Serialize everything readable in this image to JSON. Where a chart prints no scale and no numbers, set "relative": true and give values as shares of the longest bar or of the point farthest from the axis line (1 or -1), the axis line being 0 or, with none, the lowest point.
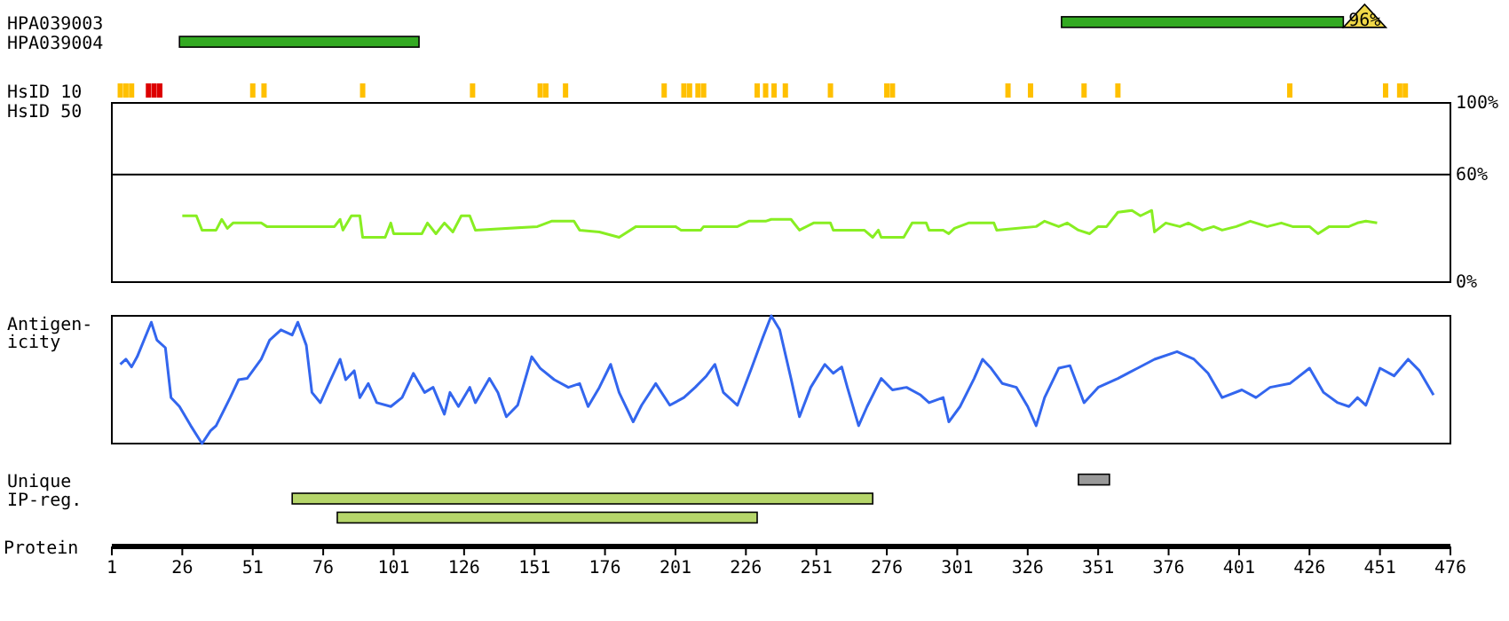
{
  "chart_data": [
    {
      "type": "bar",
      "orientation": "horizontal",
      "categories": [
        "HPA039003",
        "HPA039004"
      ],
      "base": [
        338,
        25
      ],
      "values": [
        100,
        85
      ],
      "color": "#33aa22",
      "xlim": [
        1,
        476
      ],
      "tick_labels": "y",
      "annotations": [
        {
          "text": "96%",
          "x": 438,
          "y": "HPA039003"
        }
      ]
    },
    {
      "type": "bar",
      "relative": true,
      "ylabel": "HsID 10",
      "xlim": [
        1,
        476
      ],
      "series": [
        {
          "color": "#ffc000",
          "x": [
            4,
            6,
            8,
            51,
            55,
            90,
            129,
            153,
            155,
            162,
            197,
            204,
            206,
            209,
            211,
            230,
            233,
            236,
            240,
            256,
            276,
            278,
            319,
            327,
            346,
            358,
            419,
            453,
            458,
            460
          ],
          "values": [
            1,
            1,
            1,
            1,
            1,
            1,
            1,
            1,
            1,
            1,
            1,
            1,
            1,
            1,
            1,
            1,
            1,
            1,
            1,
            1,
            1,
            1,
            1,
            1,
            1,
            1,
            1,
            1,
            1,
            1
          ]
        },
        {
          "color": "#dd0000",
          "x": [
            14,
            16,
            18
          ],
          "values": [
            1,
            1,
            1
          ]
        }
      ]
    },
    {
      "type": "line",
      "ylabel": "HsID 50",
      "xlim": [
        1,
        476
      ],
      "ylim": [
        0,
        100
      ],
      "yticks": [
        {
          "value": 0,
          "label": "0%"
        },
        {
          "value": 60,
          "label": "60%"
        },
        {
          "value": 100,
          "label": "100%"
        }
      ],
      "tick_labels": "y",
      "ref_lines": [
        {
          "axis": "y",
          "value": 60,
          "color": "#000000"
        }
      ],
      "series": [
        {
          "color": "#88ee22",
          "x": [
            26,
            31,
            33,
            38,
            40,
            42,
            44,
            54,
            56,
            80,
            82,
            83,
            86,
            89,
            90,
            98,
            100,
            101,
            111,
            113,
            116,
            119,
            122,
            125,
            128,
            130,
            152,
            157,
            165,
            167,
            174,
            181,
            187,
            201,
            203,
            210,
            211,
            223,
            227,
            233,
            235,
            242,
            245,
            250,
            256,
            257,
            268,
            271,
            273,
            274,
            282,
            285,
            290,
            291,
            296,
            298,
            300,
            305,
            314,
            315,
            329,
            332,
            337,
            340,
            344,
            348,
            351,
            354,
            358,
            363,
            366,
            370,
            371,
            375,
            380,
            383,
            388,
            392,
            395,
            400,
            405,
            411,
            416,
            420,
            426,
            429,
            433,
            440,
            443,
            446,
            450
          ],
          "values": [
            37,
            37,
            29,
            29,
            35,
            30,
            33,
            33,
            31,
            31,
            35,
            29,
            37,
            37,
            25,
            25,
            33,
            27,
            27,
            33,
            27,
            33,
            28,
            37,
            37,
            29,
            31,
            34,
            34,
            29,
            28,
            25,
            31,
            31,
            29,
            29,
            31,
            31,
            34,
            34,
            35,
            35,
            29,
            33,
            33,
            29,
            29,
            25,
            29,
            25,
            25,
            33,
            33,
            29,
            29,
            27,
            30,
            33,
            33,
            29,
            31,
            34,
            31,
            33,
            29,
            27,
            31,
            31,
            39,
            40,
            37,
            40,
            28,
            33,
            31,
            33,
            29,
            31,
            29,
            31,
            34,
            31,
            33,
            31,
            31,
            27,
            31,
            31,
            33,
            34,
            33
          ]
        }
      ]
    },
    {
      "type": "line",
      "relative": true,
      "ylabel": "Antigen-\nicity",
      "xlim": [
        1,
        476
      ],
      "series": [
        {
          "color": "#3366ee",
          "x": [
            4,
            6,
            8,
            10,
            15,
            17,
            20,
            22,
            25,
            29,
            33,
            36,
            38,
            43,
            46,
            49,
            54,
            57,
            61,
            65,
            67,
            70,
            72,
            75,
            78,
            82,
            84,
            87,
            89,
            92,
            95,
            100,
            104,
            108,
            112,
            115,
            119,
            121,
            124,
            128,
            130,
            135,
            138,
            141,
            145,
            150,
            153,
            158,
            163,
            167,
            170,
            174,
            178,
            181,
            186,
            189,
            194,
            199,
            204,
            208,
            212,
            215,
            218,
            223,
            228,
            232,
            235,
            238,
            242,
            245,
            249,
            254,
            257,
            260,
            262,
            266,
            269,
            274,
            278,
            283,
            288,
            291,
            296,
            298,
            302,
            307,
            310,
            313,
            317,
            322,
            326,
            329,
            332,
            337,
            341,
            346,
            351,
            358,
            365,
            371,
            379,
            385,
            390,
            395,
            402,
            407,
            412,
            419,
            426,
            431,
            436,
            440,
            443,
            446,
            451,
            456,
            461,
            465,
            470
          ],
          "values": [
            0.62,
            0.66,
            0.6,
            0.68,
            0.95,
            0.81,
            0.75,
            0.36,
            0.29,
            0.14,
            0,
            0.1,
            0.14,
            0.36,
            0.5,
            0.51,
            0.66,
            0.81,
            0.89,
            0.85,
            0.95,
            0.77,
            0.4,
            0.32,
            0.47,
            0.66,
            0.5,
            0.57,
            0.36,
            0.47,
            0.32,
            0.29,
            0.36,
            0.55,
            0.4,
            0.44,
            0.23,
            0.4,
            0.29,
            0.44,
            0.32,
            0.51,
            0.4,
            0.21,
            0.3,
            0.68,
            0.59,
            0.5,
            0.44,
            0.47,
            0.29,
            0.44,
            0.62,
            0.4,
            0.17,
            0.3,
            0.47,
            0.3,
            0.36,
            0.44,
            0.53,
            0.62,
            0.4,
            0.3,
            0.59,
            0.83,
            1,
            0.89,
            0.51,
            0.21,
            0.44,
            0.62,
            0.55,
            0.6,
            0.44,
            0.14,
            0.29,
            0.51,
            0.42,
            0.44,
            0.38,
            0.32,
            0.36,
            0.17,
            0.29,
            0.51,
            0.66,
            0.59,
            0.47,
            0.44,
            0.29,
            0.14,
            0.36,
            0.59,
            0.61,
            0.32,
            0.44,
            0.51,
            0.59,
            0.66,
            0.72,
            0.66,
            0.55,
            0.36,
            0.42,
            0.36,
            0.44,
            0.47,
            0.59,
            0.4,
            0.32,
            0.29,
            0.36,
            0.3,
            0.59,
            0.53,
            0.66,
            0.57,
            0.38
          ]
        }
      ]
    },
    {
      "type": "bar",
      "orientation": "horizontal",
      "categories": [
        "Unique",
        "IP-reg.",
        null
      ],
      "base": [
        344,
        65,
        81
      ],
      "values": [
        11,
        206,
        149
      ],
      "colors": [
        "#999999",
        "#b5d56a",
        "#b5d56a"
      ],
      "xlim": [
        1,
        476
      ],
      "xticks": [
        1,
        26,
        51,
        76,
        101,
        126,
        151,
        176,
        201,
        226,
        251,
        276,
        301,
        326,
        351,
        376,
        401,
        426,
        451,
        476
      ],
      "xlabel": "Protein"
    }
  ]
}
